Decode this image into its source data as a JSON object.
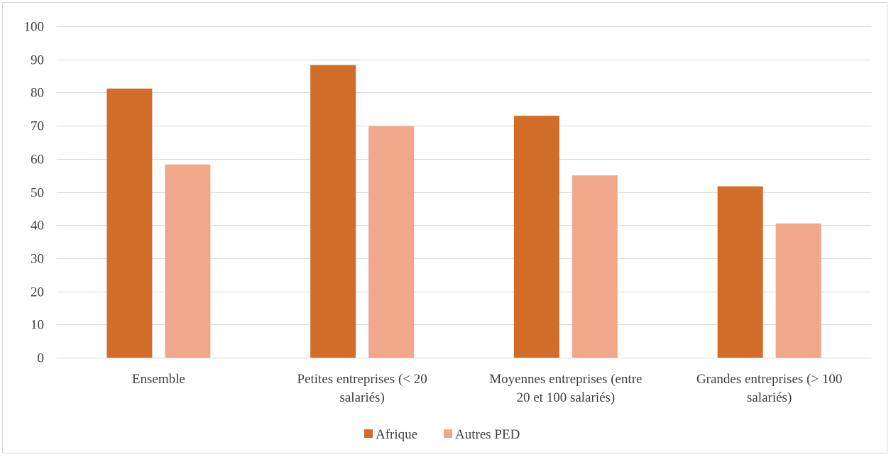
{
  "chart_data": {
    "type": "bar",
    "title": "",
    "xlabel": "",
    "ylabel": "",
    "ylim": [
      0,
      100
    ],
    "yticks": [
      0,
      10,
      20,
      30,
      40,
      50,
      60,
      70,
      80,
      90,
      100
    ],
    "grid": true,
    "legend_position": "bottom",
    "categories": [
      [
        "Ensemble"
      ],
      [
        "Petites entreprises (< 20",
        "salariés)"
      ],
      [
        "Moyennes entreprises (entre",
        "20 et 100 salariés)"
      ],
      [
        "Grandes entreprises (> 100",
        "salariés)"
      ]
    ],
    "series": [
      {
        "name": "Afrique",
        "color": "#d26d29",
        "values": [
          81.2,
          88.3,
          73.0,
          51.7
        ]
      },
      {
        "name": "Autres PED",
        "color": "#f0a78a",
        "values": [
          58.3,
          69.8,
          55.0,
          40.5
        ]
      }
    ],
    "colors": {
      "grid": "#d9d9d9",
      "text": "#404040",
      "frame": "#d9d9d9"
    }
  }
}
